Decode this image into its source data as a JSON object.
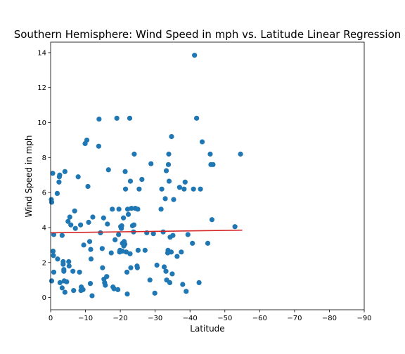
{
  "chart_data": {
    "type": "scatter",
    "title": "Southern Hemisphere: Wind Speed in mph vs. Latitude Linear Regression",
    "xlabel": "Latitude",
    "ylabel": "Wind Speed in mph",
    "xlim": [
      0,
      -90
    ],
    "ylim": [
      -0.7,
      14.6
    ],
    "x_ticks": [
      0,
      -10,
      -20,
      -30,
      -40,
      -50,
      -60,
      -70,
      -80,
      -90
    ],
    "x_tick_labels": [
      "0",
      "−10",
      "−20",
      "−30",
      "−40",
      "−50",
      "−60",
      "−70",
      "−80",
      "−90"
    ],
    "y_ticks": [
      0,
      2,
      4,
      6,
      8,
      10,
      12,
      14
    ],
    "y_tick_labels": [
      "0",
      "2",
      "4",
      "6",
      "8",
      "10",
      "12",
      "14"
    ],
    "grid": false,
    "point_color": "#1f77b4",
    "line_color": "#d62728",
    "regression_line": {
      "x": [
        0,
        -55
      ],
      "y": [
        3.7,
        3.85
      ]
    },
    "points": [
      {
        "x": -0.2,
        "y": 5.6
      },
      {
        "x": -0.3,
        "y": 5.45
      },
      {
        "x": -0.6,
        "y": 7.1
      },
      {
        "x": -0.3,
        "y": 0.95
      },
      {
        "x": -0.7,
        "y": 2.65
      },
      {
        "x": -0.9,
        "y": 3.6
      },
      {
        "x": -0.8,
        "y": 2.4
      },
      {
        "x": -0.9,
        "y": 1.45
      },
      {
        "x": -1.9,
        "y": 5.95
      },
      {
        "x": -2.0,
        "y": 2.2
      },
      {
        "x": -2.4,
        "y": 6.6
      },
      {
        "x": -2.6,
        "y": 7.0
      },
      {
        "x": -2.5,
        "y": 6.9
      },
      {
        "x": -2.7,
        "y": 0.85
      },
      {
        "x": -3.3,
        "y": 3.55
      },
      {
        "x": -3.3,
        "y": 0.55
      },
      {
        "x": -3.6,
        "y": 2.05
      },
      {
        "x": -3.6,
        "y": 1.9
      },
      {
        "x": -3.8,
        "y": 1.6
      },
      {
        "x": -3.8,
        "y": 1.5
      },
      {
        "x": -3.9,
        "y": 0.95
      },
      {
        "x": -4.1,
        "y": 0.3
      },
      {
        "x": -4.1,
        "y": 7.2
      },
      {
        "x": -4.6,
        "y": 0.9
      },
      {
        "x": -5.0,
        "y": 4.35
      },
      {
        "x": -5.2,
        "y": 2.05
      },
      {
        "x": -5.3,
        "y": 1.8
      },
      {
        "x": -5.5,
        "y": 4.6
      },
      {
        "x": -5.8,
        "y": 4.15
      },
      {
        "x": -6.4,
        "y": 1.5
      },
      {
        "x": -6.6,
        "y": 0.4
      },
      {
        "x": -6.9,
        "y": 4.95
      },
      {
        "x": -7.1,
        "y": 3.95
      },
      {
        "x": -7.9,
        "y": 6.9
      },
      {
        "x": -8.3,
        "y": 1.45
      },
      {
        "x": -8.6,
        "y": 4.15
      },
      {
        "x": -8.7,
        "y": 0.4
      },
      {
        "x": -8.8,
        "y": 0.6
      },
      {
        "x": -9.3,
        "y": 0.45
      },
      {
        "x": -9.5,
        "y": 3.0
      },
      {
        "x": -9.9,
        "y": 8.8
      },
      {
        "x": -10.4,
        "y": 9.0
      },
      {
        "x": -10.7,
        "y": 6.35
      },
      {
        "x": -10.9,
        "y": 4.3
      },
      {
        "x": -11.2,
        "y": 3.2
      },
      {
        "x": -11.4,
        "y": 0.8
      },
      {
        "x": -11.5,
        "y": 2.75
      },
      {
        "x": -11.6,
        "y": 2.2
      },
      {
        "x": -11.9,
        "y": 0.1
      },
      {
        "x": -12.1,
        "y": 4.6
      },
      {
        "x": -13.8,
        "y": 8.65
      },
      {
        "x": -13.9,
        "y": 10.2
      },
      {
        "x": -14.3,
        "y": 3.7
      },
      {
        "x": -14.8,
        "y": 2.8
      },
      {
        "x": -14.9,
        "y": 1.7
      },
      {
        "x": -15.2,
        "y": 4.55
      },
      {
        "x": -15.3,
        "y": 1.05
      },
      {
        "x": -15.5,
        "y": 0.85
      },
      {
        "x": -15.7,
        "y": 0.7
      },
      {
        "x": -16.1,
        "y": 1.2
      },
      {
        "x": -16.3,
        "y": 4.2
      },
      {
        "x": -16.6,
        "y": 7.3
      },
      {
        "x": -17.4,
        "y": 2.55
      },
      {
        "x": -17.7,
        "y": 5.05
      },
      {
        "x": -17.9,
        "y": 0.6
      },
      {
        "x": -18.2,
        "y": 0.5
      },
      {
        "x": -18.5,
        "y": 3.3
      },
      {
        "x": -19.0,
        "y": 10.25
      },
      {
        "x": -19.3,
        "y": 0.45
      },
      {
        "x": -19.5,
        "y": 3.6
      },
      {
        "x": -19.6,
        "y": 5.05
      },
      {
        "x": -19.8,
        "y": 2.6
      },
      {
        "x": -19.9,
        "y": 2.7
      },
      {
        "x": -20.1,
        "y": 4.05
      },
      {
        "x": -20.3,
        "y": 3.95
      },
      {
        "x": -20.4,
        "y": 4.1
      },
      {
        "x": -20.6,
        "y": 3.1
      },
      {
        "x": -20.6,
        "y": 2.65
      },
      {
        "x": -20.9,
        "y": 4.55
      },
      {
        "x": -21.0,
        "y": 2.95
      },
      {
        "x": -21.1,
        "y": 3.2
      },
      {
        "x": -21.3,
        "y": 3.05
      },
      {
        "x": -21.4,
        "y": 7.2
      },
      {
        "x": -21.5,
        "y": 6.2
      },
      {
        "x": -21.7,
        "y": 2.6
      },
      {
        "x": -21.9,
        "y": 1.45
      },
      {
        "x": -22.0,
        "y": 0.2
      },
      {
        "x": -22.1,
        "y": 5.05
      },
      {
        "x": -22.3,
        "y": 4.75
      },
      {
        "x": -22.7,
        "y": 10.25
      },
      {
        "x": -22.8,
        "y": 2.5
      },
      {
        "x": -22.9,
        "y": 6.65
      },
      {
        "x": -23.0,
        "y": 1.7
      },
      {
        "x": -23.2,
        "y": 5.1
      },
      {
        "x": -23.5,
        "y": 4.1
      },
      {
        "x": -23.8,
        "y": 3.75
      },
      {
        "x": -23.9,
        "y": 4.15
      },
      {
        "x": -24.0,
        "y": 8.2
      },
      {
        "x": -24.3,
        "y": 5.1
      },
      {
        "x": -24.8,
        "y": 1.8
      },
      {
        "x": -24.9,
        "y": 1.7
      },
      {
        "x": -25.0,
        "y": 5.05
      },
      {
        "x": -25.1,
        "y": 2.7
      },
      {
        "x": -25.4,
        "y": 6.2
      },
      {
        "x": -26.2,
        "y": 6.75
      },
      {
        "x": -27.1,
        "y": 2.7
      },
      {
        "x": -27.6,
        "y": 3.7
      },
      {
        "x": -28.5,
        "y": 1.0
      },
      {
        "x": -28.8,
        "y": 7.65
      },
      {
        "x": -29.5,
        "y": 3.65
      },
      {
        "x": -29.9,
        "y": 0.25
      },
      {
        "x": -30.5,
        "y": 1.85
      },
      {
        "x": -31.7,
        "y": 5.05
      },
      {
        "x": -31.9,
        "y": 6.2
      },
      {
        "x": -32.3,
        "y": 3.75
      },
      {
        "x": -32.6,
        "y": 1.75
      },
      {
        "x": -32.9,
        "y": 5.65
      },
      {
        "x": -33.1,
        "y": 1.5
      },
      {
        "x": -33.2,
        "y": 7.25
      },
      {
        "x": -33.3,
        "y": 1.0
      },
      {
        "x": -33.6,
        "y": 2.55
      },
      {
        "x": -33.7,
        "y": 2.7
      },
      {
        "x": -33.8,
        "y": 7.6
      },
      {
        "x": -33.9,
        "y": 8.2
      },
      {
        "x": -34.0,
        "y": 6.65
      },
      {
        "x": -34.2,
        "y": 0.85
      },
      {
        "x": -34.3,
        "y": 3.45
      },
      {
        "x": -34.6,
        "y": 2.6
      },
      {
        "x": -34.7,
        "y": 9.2
      },
      {
        "x": -34.9,
        "y": 1.35
      },
      {
        "x": -35.1,
        "y": 3.55
      },
      {
        "x": -35.3,
        "y": 5.6
      },
      {
        "x": -36.3,
        "y": 2.35
      },
      {
        "x": -37.0,
        "y": 6.3
      },
      {
        "x": -37.5,
        "y": 2.6
      },
      {
        "x": -37.9,
        "y": 0.75
      },
      {
        "x": -38.3,
        "y": 6.2
      },
      {
        "x": -38.6,
        "y": 6.6
      },
      {
        "x": -38.9,
        "y": 0.35
      },
      {
        "x": -39.4,
        "y": 3.6
      },
      {
        "x": -40.7,
        "y": 3.1
      },
      {
        "x": -41.0,
        "y": 6.2
      },
      {
        "x": -41.3,
        "y": 13.85
      },
      {
        "x": -41.9,
        "y": 10.25
      },
      {
        "x": -42.6,
        "y": 0.85
      },
      {
        "x": -43.0,
        "y": 6.2
      },
      {
        "x": -43.5,
        "y": 8.9
      },
      {
        "x": -45.1,
        "y": 3.1
      },
      {
        "x": -45.8,
        "y": 8.2
      },
      {
        "x": -46.0,
        "y": 7.6
      },
      {
        "x": -46.3,
        "y": 4.45
      },
      {
        "x": -46.6,
        "y": 7.6
      },
      {
        "x": -52.9,
        "y": 4.05
      },
      {
        "x": -54.5,
        "y": 8.2
      }
    ]
  }
}
